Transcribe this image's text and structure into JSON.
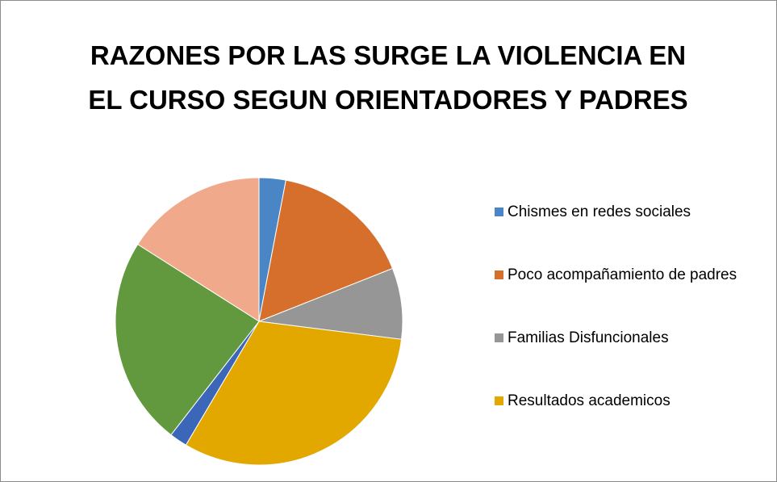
{
  "chart_data": {
    "type": "pie",
    "title": "RAZONES POR LAS SURGE LA VIOLENCIA EN EL CURSO SEGUN ORIENTADORES Y PADRES",
    "categories": [
      "Chismes en redes sociales",
      "Poco acompañamiento de padres",
      "Familias Disfuncionales",
      "Resultados academicos",
      null,
      null,
      null
    ],
    "values": [
      3,
      16,
      8,
      31.5,
      2,
      23.5,
      16
    ],
    "colors": [
      "#4a86c5",
      "#d56f2b",
      "#969696",
      "#e2a800",
      "#3c66b8",
      "#62993e",
      "#f0a98a"
    ],
    "legend": "right"
  }
}
